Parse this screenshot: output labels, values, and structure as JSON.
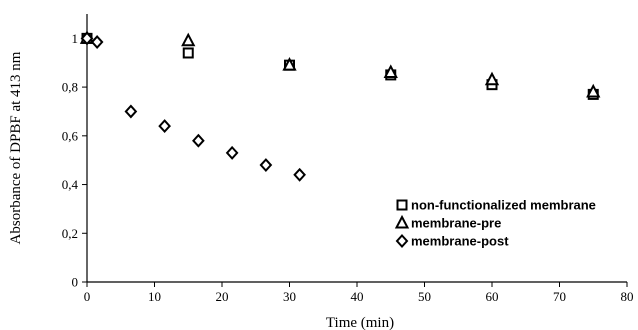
{
  "chart_data": {
    "type": "scatter",
    "xlabel": "Time  (min)",
    "ylabel": "Absorbance of  DPBF at 413 nm",
    "xlim": [
      0,
      80
    ],
    "ylim": [
      0,
      1.1
    ],
    "x_ticks": [
      "0",
      "10",
      "20",
      "30",
      "40",
      "50",
      "60",
      "70",
      "80"
    ],
    "y_ticks": [
      "0",
      "0,2",
      "0,4",
      "0,6",
      "0,8",
      "1"
    ],
    "legend_position": "bottom-right",
    "series": [
      {
        "name": "non-functionalized membrane",
        "marker": "square",
        "points": [
          [
            0,
            1.0
          ],
          [
            15,
            0.94
          ],
          [
            30,
            0.89
          ],
          [
            45,
            0.85
          ],
          [
            60,
            0.81
          ],
          [
            75,
            0.77
          ]
        ]
      },
      {
        "name": "membrane-pre",
        "marker": "triangle",
        "points": [
          [
            0,
            1.0
          ],
          [
            15,
            0.99
          ],
          [
            30,
            0.89
          ],
          [
            45,
            0.86
          ],
          [
            60,
            0.83
          ],
          [
            75,
            0.78
          ]
        ]
      },
      {
        "name": "membrane-post",
        "marker": "diamond",
        "points": [
          [
            0,
            1.0
          ],
          [
            1.5,
            0.985
          ],
          [
            6.5,
            0.7
          ],
          [
            11.5,
            0.64
          ],
          [
            16.5,
            0.58
          ],
          [
            21.5,
            0.53
          ],
          [
            26.5,
            0.48
          ],
          [
            31.5,
            0.44
          ]
        ]
      }
    ]
  }
}
